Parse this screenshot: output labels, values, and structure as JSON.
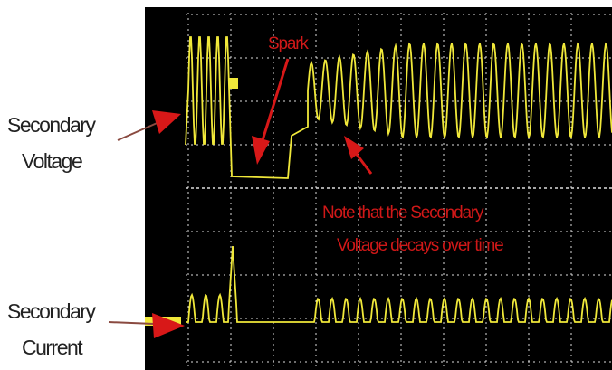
{
  "labels": {
    "voltage": [
      "Secondary",
      "Voltage"
    ],
    "current": [
      "Secondary",
      "Current"
    ]
  },
  "annotations": {
    "spark": "Spark",
    "note": [
      "Note that the Secondary",
      "Voltage decays over time"
    ]
  }
}
